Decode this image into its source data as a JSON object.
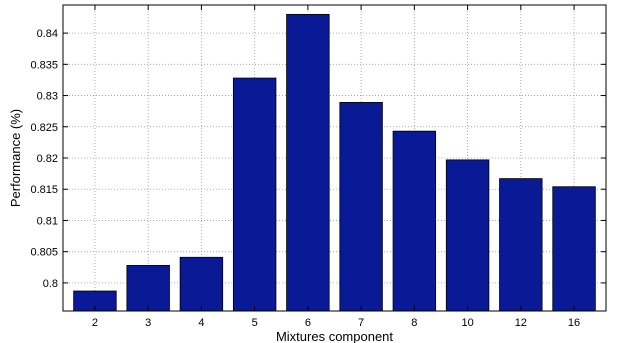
{
  "chart_data": {
    "type": "bar",
    "xlabel": "Mixtures component",
    "ylabel": "Performance (%)",
    "categories": [
      "2",
      "3",
      "4",
      "5",
      "6",
      "7",
      "8",
      "10",
      "12",
      "16"
    ],
    "values": [
      0.7987,
      0.8028,
      0.8041,
      0.8328,
      0.843,
      0.8289,
      0.8243,
      0.8197,
      0.8167,
      0.8154
    ],
    "ylim": [
      0.7955,
      0.8445
    ],
    "yticks": [
      0.8,
      0.805,
      0.81,
      0.815,
      0.82,
      0.825,
      0.83,
      0.835,
      0.84
    ],
    "ytick_labels": [
      "0.8",
      "0.805",
      "0.81",
      "0.815",
      "0.82",
      "0.825",
      "0.83",
      "0.835",
      "0.84"
    ],
    "grid": true,
    "bar_color": "#0a1a96"
  }
}
